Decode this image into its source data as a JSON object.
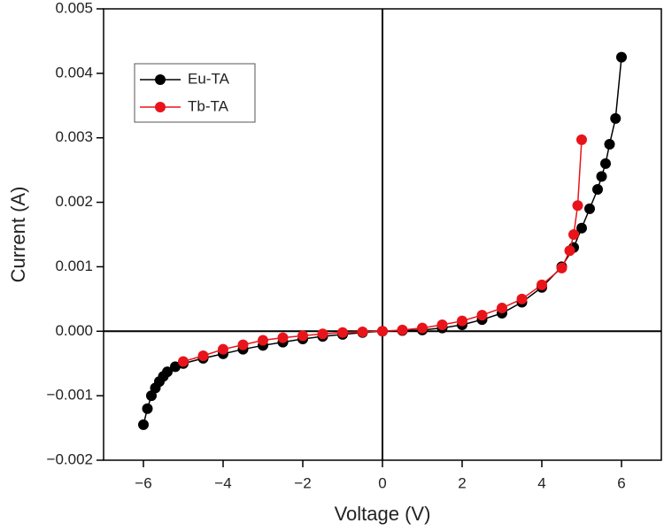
{
  "chart_data": {
    "type": "scatter-line",
    "x_label": "Voltage (V)",
    "y_label": "Current (A)",
    "xlim": [
      -7,
      7
    ],
    "ylim": [
      -0.002,
      0.005
    ],
    "xticks": [
      {
        "value": -6,
        "label": "−6"
      },
      {
        "value": -4,
        "label": "−4"
      },
      {
        "value": -2,
        "label": "−2"
      },
      0,
      2,
      4,
      6
    ],
    "yticks": [
      {
        "value": -0.002,
        "label": "−0.002"
      },
      {
        "value": -0.001,
        "label": "−0.001"
      },
      {
        "value": 0,
        "label": "0.000"
      },
      {
        "value": 0.001,
        "label": "0.001"
      },
      {
        "value": 0.002,
        "label": "0.002"
      },
      {
        "value": 0.003,
        "label": "0.003"
      },
      {
        "value": 0.004,
        "label": "0.004"
      },
      {
        "value": 0.005,
        "label": "0.005"
      }
    ],
    "legend": "upper left",
    "series": [
      {
        "name": "Eu-TA",
        "color": "#000000",
        "x": [
          -6,
          -5.9,
          -5.8,
          -5.7,
          -5.6,
          -5.5,
          -5.4,
          -5.2,
          -5,
          -4.5,
          -4,
          -3.5,
          -3,
          -2.5,
          -2,
          -1.5,
          -1,
          -0.5,
          0,
          0.5,
          1,
          1.5,
          2,
          2.5,
          3,
          3.5,
          4,
          4.5,
          4.8,
          5,
          5.2,
          5.4,
          5.5,
          5.6,
          5.7,
          5.85,
          6
        ],
        "values": [
          -0.00145,
          -0.0012,
          -0.001,
          -0.00088,
          -0.00078,
          -0.0007,
          -0.00063,
          -0.00055,
          -0.0005,
          -0.00042,
          -0.00035,
          -0.00028,
          -0.00022,
          -0.00017,
          -0.00012,
          -8e-05,
          -5e-05,
          -2e-05,
          0,
          1e-05,
          2e-05,
          5e-05,
          0.0001,
          0.00018,
          0.00028,
          0.00045,
          0.00068,
          0.001,
          0.0013,
          0.0016,
          0.0019,
          0.0022,
          0.0024,
          0.0026,
          0.0029,
          0.0033,
          0.00425
        ]
      },
      {
        "name": "Tb-TA",
        "color": "#e8141a",
        "x": [
          -5,
          -4.5,
          -4,
          -3.5,
          -3,
          -2.5,
          -2,
          -1.5,
          -1,
          -0.5,
          0,
          0.5,
          1,
          1.5,
          2,
          2.5,
          3,
          3.5,
          4,
          4.5,
          4.7,
          4.8,
          4.9,
          5
        ],
        "values": [
          -0.00047,
          -0.00038,
          -0.00028,
          -0.00021,
          -0.00014,
          -0.0001,
          -7e-05,
          -4e-05,
          -2e-05,
          -1e-05,
          0,
          2e-05,
          5e-05,
          0.0001,
          0.00016,
          0.00025,
          0.00036,
          0.0005,
          0.00072,
          0.00098,
          0.00125,
          0.0015,
          0.00195,
          0.00297
        ]
      }
    ]
  }
}
